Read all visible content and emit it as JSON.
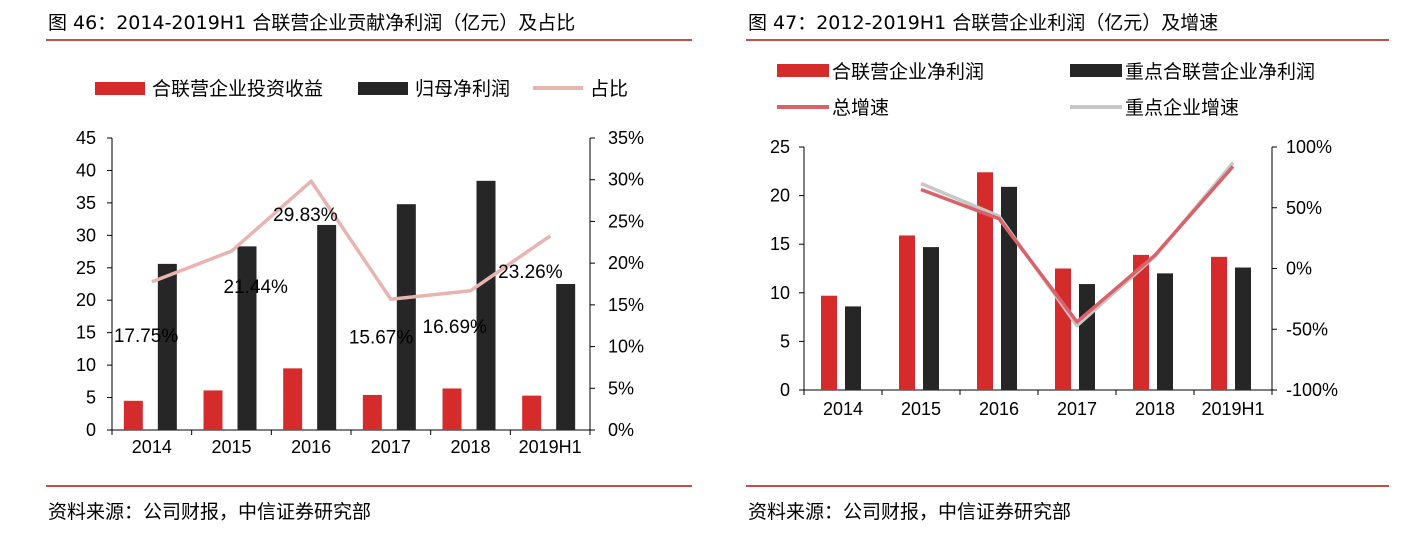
{
  "colors": {
    "red_bar": "#d52b2b",
    "black_bar": "#262626",
    "pink_line": "#e8b4b0",
    "red_line": "#d9626a",
    "gray_line": "#c7c7c7",
    "rule": "#c0504d"
  },
  "chart_data": [
    {
      "type": "bar",
      "title": "图 46：2014-2019H1 合联营企业贡献净利润（亿元）及占比",
      "source": "资料来源：公司财报，中信证券研究部",
      "categories": [
        "2014",
        "2015",
        "2016",
        "2017",
        "2018",
        "2019H1"
      ],
      "series": [
        {
          "name": "合联营企业投资收益",
          "kind": "bar",
          "axis": "left",
          "values": [
            4.5,
            6.1,
            9.5,
            5.4,
            6.4,
            5.3
          ]
        },
        {
          "name": "归母净利润",
          "kind": "bar",
          "axis": "left",
          "values": [
            25.6,
            28.3,
            31.6,
            34.8,
            38.4,
            22.5
          ]
        },
        {
          "name": "占比",
          "kind": "line",
          "axis": "right",
          "values": [
            17.75,
            21.44,
            29.83,
            15.67,
            16.69,
            23.26
          ]
        }
      ],
      "data_labels": [
        "17.75%",
        "21.44%",
        "29.83%",
        "15.67%",
        "16.69%",
        "23.26%"
      ],
      "ylim_left": [
        0,
        45
      ],
      "yticks_left": [
        "0",
        "5",
        "10",
        "15",
        "20",
        "25",
        "30",
        "35",
        "40",
        "45"
      ],
      "ylim_right": [
        0,
        35
      ],
      "yticks_right": [
        "0%",
        "5%",
        "10%",
        "15%",
        "20%",
        "25%",
        "30%",
        "35%"
      ],
      "grid": false,
      "legend_placement": "top"
    },
    {
      "type": "bar",
      "title": "图 47：2012-2019H1 合联营企业利润（亿元）及增速",
      "source": "资料来源：公司财报，中信证券研究部",
      "categories": [
        "2014",
        "2015",
        "2016",
        "2017",
        "2018",
        "2019H1"
      ],
      "series": [
        {
          "name": "合联营企业净利润",
          "kind": "bar",
          "axis": "left",
          "values": [
            9.7,
            15.9,
            22.4,
            12.5,
            13.9,
            13.7
          ]
        },
        {
          "name": "重点合联营企业净利润",
          "kind": "bar",
          "axis": "left",
          "values": [
            8.6,
            14.7,
            20.9,
            10.9,
            12.0,
            12.6
          ]
        },
        {
          "name": "总增速",
          "kind": "line",
          "axis": "right",
          "values": [
            null,
            65,
            41,
            -44,
            11,
            84
          ]
        },
        {
          "name": "重点企业增速",
          "kind": "line",
          "axis": "right",
          "values": [
            null,
            70,
            43,
            -47,
            10,
            87
          ]
        }
      ],
      "ylim_left": [
        0,
        25
      ],
      "yticks_left": [
        "0",
        "5",
        "10",
        "15",
        "20",
        "25"
      ],
      "ylim_right": [
        -100,
        100
      ],
      "yticks_right": [
        "-100%",
        "-50%",
        "0%",
        "50%",
        "100%"
      ],
      "grid": false,
      "legend_placement": "top"
    }
  ]
}
